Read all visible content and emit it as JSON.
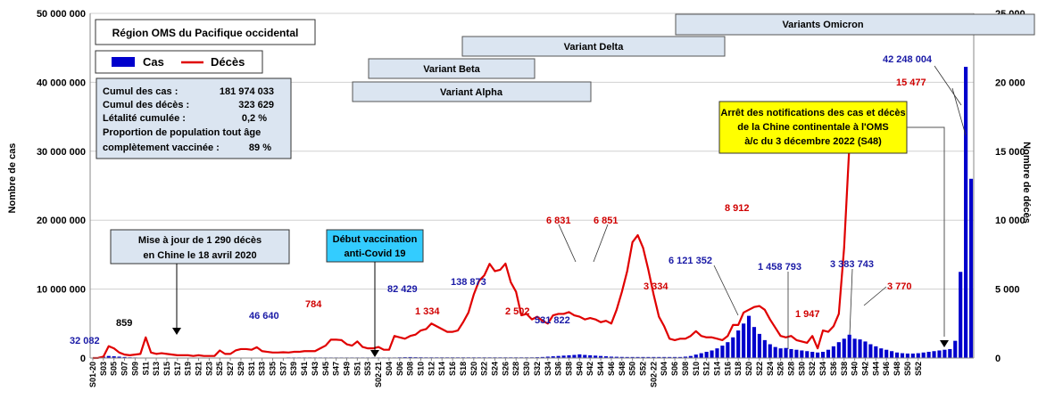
{
  "chart_data": {
    "type": "bar+line",
    "title": "Région OMS du Pacifique occidental",
    "ylabel_left": "Nombre de cas",
    "ylabel_right": "Nombre de décès",
    "ylim_left": [
      0,
      50000000
    ],
    "ylim_right": [
      0,
      25000
    ],
    "yticks_left": [
      "0",
      "10 000 000",
      "20 000 000",
      "30 000 000",
      "40 000 000",
      "50 000 000"
    ],
    "yticks_right": [
      "0",
      "5 000",
      "10 000",
      "15 000",
      "20 000",
      "25 000"
    ],
    "x_tick_labels": [
      "S01-20",
      "S03",
      "S05",
      "S07",
      "S09",
      "S11",
      "S13",
      "S15",
      "S17",
      "S19",
      "S21",
      "S23",
      "S25",
      "S27",
      "S29",
      "S31",
      "S33",
      "S35",
      "S37",
      "S39",
      "S41",
      "S43",
      "S45",
      "S47",
      "S49",
      "S51",
      "S53",
      "S02-21",
      "S04",
      "S06",
      "S08",
      "S10",
      "S12",
      "S14",
      "S16",
      "S18",
      "S20",
      "S22",
      "S24",
      "S26",
      "S28",
      "S30",
      "S32",
      "S34",
      "S36",
      "S38",
      "S40",
      "S42",
      "S44",
      "S46",
      "S48",
      "S50",
      "S52",
      "S02-22",
      "S04",
      "S06",
      "S08",
      "S10",
      "S12",
      "S14",
      "S16",
      "S18",
      "S20",
      "S22",
      "S24",
      "S26",
      "S28",
      "S30",
      "S32",
      "S34",
      "S36",
      "S38",
      "S40",
      "S42",
      "S44",
      "S46",
      "S48",
      "S50",
      "S52"
    ],
    "legend": {
      "cases": "Cas",
      "deaths": "Décès"
    },
    "series": [
      {
        "name": "Cas",
        "type": "bar",
        "color": "#0000cc",
        "axis": "left",
        "values": [
          32082,
          100000,
          200000,
          300000,
          250000,
          200000,
          150000,
          100000,
          80000,
          60000,
          50000,
          40000,
          40000,
          40000,
          40000,
          40000,
          40000,
          46640,
          50000,
          50000,
          50000,
          50000,
          50000,
          50000,
          50000,
          50000,
          50000,
          50000,
          50000,
          50000,
          50000,
          50000,
          50000,
          50000,
          50000,
          50000,
          50000,
          82429,
          80000,
          80000,
          80000,
          80000,
          80000,
          80000,
          80000,
          80000,
          80000,
          80000,
          80000,
          80000,
          80000,
          80000,
          80000,
          80000,
          80000,
          80000,
          80000,
          80000,
          100000,
          120000,
          138873,
          120000,
          110000,
          100000,
          100000,
          100000,
          100000,
          100000,
          100000,
          100000,
          100000,
          100000,
          100000,
          100000,
          100000,
          100000,
          100000,
          100000,
          100000,
          100000,
          100000,
          100000,
          100000,
          100000,
          120000,
          150000,
          200000,
          250000,
          300000,
          350000,
          400000,
          450000,
          531822,
          450000,
          400000,
          350000,
          300000,
          250000,
          200000,
          180000,
          160000,
          150000,
          150000,
          150000,
          150000,
          150000,
          150000,
          150000,
          150000,
          150000,
          150000,
          150000,
          200000,
          300000,
          500000,
          700000,
          900000,
          1100000,
          1400000,
          1800000,
          2300000,
          3000000,
          4000000,
          5000000,
          6121352,
          4500000,
          3500000,
          2600000,
          2000000,
          1600000,
          1400000,
          1458793,
          1300000,
          1200000,
          1100000,
          1000000,
          900000,
          800000,
          900000,
          1200000,
          1700000,
          2300000,
          2800000,
          3383743,
          2800000,
          2700000,
          2400000,
          2000000,
          1700000,
          1400000,
          1200000,
          1000000,
          800000,
          700000,
          650000,
          650000,
          700000,
          800000,
          900000,
          1000000,
          1100000,
          1200000,
          1300000,
          2500000,
          12500000,
          42248004,
          26000000
        ]
      },
      {
        "name": "Décès",
        "type": "line",
        "color": "#e00000",
        "axis": "right",
        "values": [
          0,
          10,
          100,
          859,
          700,
          400,
          250,
          200,
          250,
          300,
          1500,
          400,
          300,
          350,
          300,
          250,
          200,
          200,
          200,
          150,
          200,
          150,
          150,
          150,
          550,
          300,
          300,
          550,
          650,
          650,
          600,
          784,
          500,
          450,
          400,
          400,
          420,
          400,
          450,
          450,
          500,
          500,
          500,
          700,
          900,
          1334,
          1334,
          1300,
          1000,
          900,
          1200,
          800,
          700,
          700,
          800,
          600,
          600,
          1600,
          1500,
          1400,
          1600,
          1700,
          2000,
          2100,
          2502,
          2300,
          2100,
          1900,
          1900,
          2000,
          2600,
          3300,
          4600,
          5600,
          6000,
          6831,
          6300,
          6400,
          6851,
          5500,
          4800,
          3100,
          3200,
          2800,
          3000,
          2700,
          2500,
          3100,
          3200,
          3200,
          3334,
          3100,
          3000,
          2800,
          2900,
          2800,
          2600,
          2700,
          2500,
          3500,
          4800,
          6300,
          8400,
          8912,
          8000,
          6400,
          4600,
          3000,
          2300,
          1400,
          1300,
          1400,
          1400,
          1600,
          1947,
          1600,
          1500,
          1500,
          1400,
          1300,
          1600,
          2400,
          2400,
          3300,
          3500,
          3700,
          3770,
          3500,
          2800,
          2200,
          1600,
          1500,
          1600,
          1300,
          1200,
          1100,
          1600,
          700,
          2000,
          1900,
          2300,
          3200,
          8000,
          15477
        ]
      }
    ],
    "annotations": {
      "cases_labels": [
        {
          "text": "32 082"
        },
        {
          "text": "46 640"
        },
        {
          "text": "82 429"
        },
        {
          "text": "138 873"
        },
        {
          "text": "531 822"
        },
        {
          "text": "6 121 352"
        },
        {
          "text": "1 458 793"
        },
        {
          "text": "3 383 743"
        },
        {
          "text": "42 248 004"
        }
      ],
      "deaths_labels": [
        {
          "text": "859"
        },
        {
          "text": "784"
        },
        {
          "text": "1 334"
        },
        {
          "text": "2 502"
        },
        {
          "text": "6 831"
        },
        {
          "text": "6 851"
        },
        {
          "text": "3 334"
        },
        {
          "text": "8 912"
        },
        {
          "text": "1 947"
        },
        {
          "text": "3 770"
        },
        {
          "text": "15 477"
        }
      ]
    },
    "variants": [
      {
        "name": "Variants Omicron"
      },
      {
        "name": "Variant Delta"
      },
      {
        "name": "Variant Beta"
      },
      {
        "name": "Variant Alpha"
      }
    ],
    "summary_box": {
      "rows": [
        {
          "label": "Cumul des cas :",
          "value": "181 974 033"
        },
        {
          "label": "Cumul des décès :",
          "value": "323 629"
        },
        {
          "label": "Létalité cumulée :",
          "value": "0,2 %"
        }
      ],
      "proportion_line1": "Proportion de population tout âge",
      "proportion_line2": "complètement vaccinée :",
      "proportion_value": "89 %"
    },
    "notes": {
      "china_update_line1": "Mise à jour de 1 290 décès",
      "china_update_line2": "en Chine le 18 avril 2020",
      "vaccination_line1": "Début vaccination",
      "vaccination_line2": "anti-Covid 19",
      "stop_line1": "Arrêt des notifications des cas et décès",
      "stop_line2": "de la Chine continentale à l'OMS",
      "stop_line3": "à/c du 3 décembre 2022 (S48)"
    }
  }
}
